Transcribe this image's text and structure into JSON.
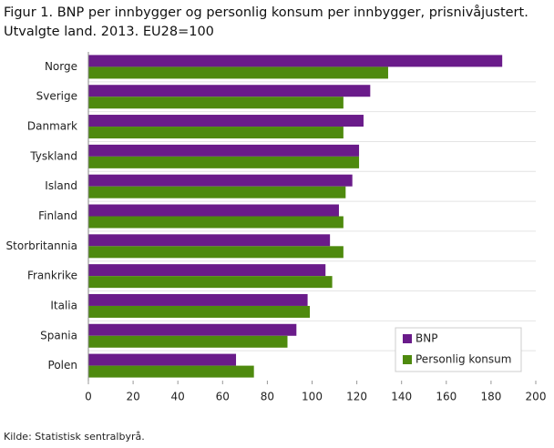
{
  "chart_data": {
    "type": "hbar",
    "title": [
      "Figur 1. BNP per innbygger og personlig konsum per innbygger, prisnivåjustert.",
      "Utvalgte land. 2013. EU28=100"
    ],
    "categories": [
      "Norge",
      "Sverige",
      "Danmark",
      "Tyskland",
      "Island",
      "Finland",
      "Storbritannia",
      "Frankrike",
      "Italia",
      "Spania",
      "Polen"
    ],
    "series": [
      {
        "name": "BNP",
        "color": "#6a1b8a",
        "values": [
          185,
          126,
          123,
          121,
          118,
          112,
          108,
          106,
          98,
          93,
          66
        ]
      },
      {
        "name": "Personlig konsum",
        "color": "#4e8a0e",
        "values": [
          134,
          114,
          114,
          121,
          115,
          114,
          114,
          109,
          99,
          89,
          74
        ]
      }
    ],
    "xlim": [
      0,
      200
    ],
    "xticks": [
      0,
      20,
      40,
      60,
      80,
      100,
      120,
      140,
      160,
      180,
      200
    ],
    "legend": "lower right",
    "source": "Kilde: Statistisk sentralbyrå."
  }
}
